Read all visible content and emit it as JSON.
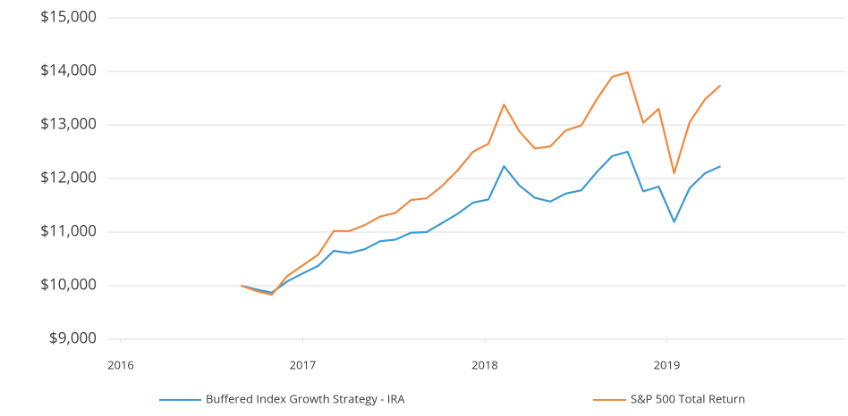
{
  "chart_data": {
    "type": "line",
    "x": [
      2016.66,
      2016.745,
      2016.83,
      2016.915,
      2017.0,
      2017.085,
      2017.17,
      2017.255,
      2017.34,
      2017.425,
      2017.51,
      2017.595,
      2017.68,
      2017.765,
      2017.85,
      2017.935,
      2018.02,
      2018.105,
      2018.19,
      2018.275,
      2018.36,
      2018.445,
      2018.53,
      2018.615,
      2018.7,
      2018.785,
      2018.87,
      2018.955,
      2019.04,
      2019.125,
      2019.21,
      2019.295
    ],
    "series": [
      {
        "name": "Buffered Index Growth Strategy - IRA",
        "color": "#3b9bd3",
        "values": [
          10000,
          9930,
          9870,
          10080,
          10230,
          10370,
          10650,
          10610,
          10680,
          10830,
          10860,
          10990,
          11000,
          11170,
          11340,
          11550,
          11610,
          12230,
          11870,
          11640,
          11570,
          11720,
          11780,
          12120,
          12420,
          12500,
          11760,
          11850,
          11190,
          11820,
          12100,
          12230
        ]
      },
      {
        "name": "S&P 500 Total Return",
        "color": "#f0893f",
        "values": [
          10000,
          9900,
          9830,
          10180,
          10380,
          10580,
          11020,
          11020,
          11130,
          11290,
          11360,
          11600,
          11630,
          11860,
          12150,
          12500,
          12650,
          13380,
          12880,
          12560,
          12600,
          12900,
          12990,
          13480,
          13900,
          13980,
          13040,
          13300,
          12100,
          13050,
          13480,
          13740
        ]
      }
    ],
    "xlim": [
      2016,
      2020
    ],
    "xticks": [
      2016,
      2017,
      2018,
      2019
    ],
    "ylim": [
      9000,
      15000
    ],
    "yticks": [
      {
        "value": 9000,
        "label": "$9,000"
      },
      {
        "value": 10000,
        "label": "$10,000"
      },
      {
        "value": 11000,
        "label": "$11,000"
      },
      {
        "value": 12000,
        "label": "$12,000"
      },
      {
        "value": 13000,
        "label": "$13,000"
      },
      {
        "value": 14000,
        "label": "$14,000"
      },
      {
        "value": 15000,
        "label": "$15,000"
      }
    ],
    "grid": true
  }
}
